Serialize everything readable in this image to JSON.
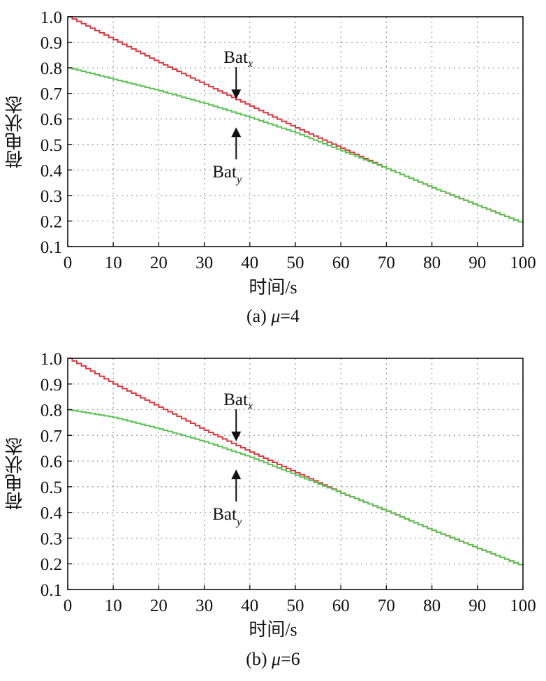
{
  "chart_data": [
    {
      "type": "line",
      "panel_caption": "(a)",
      "caption_symbol": "μ",
      "caption_value": "=4",
      "xlabel": "时间/s",
      "ylabel": "荷电状态",
      "xlim": [
        0,
        100
      ],
      "ylim": [
        0.1,
        1.0
      ],
      "xticks": [
        "0",
        "10",
        "20",
        "30",
        "40",
        "50",
        "60",
        "70",
        "80",
        "90",
        "100"
      ],
      "yticks": [
        "0.1",
        "0.2",
        "0.3",
        "0.4",
        "0.5",
        "0.6",
        "0.7",
        "0.8",
        "0.9",
        "1.0"
      ],
      "grid": true,
      "series": [
        {
          "name": "Bat_x",
          "color": "#d9363e",
          "x": [
            0,
            10,
            20,
            30,
            40,
            50,
            60,
            70,
            80,
            90,
            100
          ],
          "y": [
            1.0,
            0.91,
            0.82,
            0.735,
            0.65,
            0.565,
            0.485,
            0.405,
            0.33,
            0.26,
            0.19
          ]
        },
        {
          "name": "Bat_y",
          "color": "#5cc155",
          "x": [
            0,
            10,
            20,
            30,
            40,
            50,
            60,
            70,
            80,
            90,
            100
          ],
          "y": [
            0.8,
            0.755,
            0.71,
            0.66,
            0.605,
            0.545,
            0.475,
            0.405,
            0.33,
            0.26,
            0.19
          ]
        }
      ],
      "annotations": [
        {
          "base": "Bat",
          "sub": "x",
          "x": 37,
          "y": 0.655,
          "direction": "down"
        },
        {
          "base": "Bat",
          "sub": "y",
          "x": 37,
          "y": 0.6,
          "direction": "up"
        }
      ]
    },
    {
      "type": "line",
      "panel_caption": "(b)",
      "caption_symbol": "μ",
      "caption_value": "=6",
      "xlabel": "时间/s",
      "ylabel": "荷电状态",
      "xlim": [
        0,
        100
      ],
      "ylim": [
        0.1,
        1.0
      ],
      "xticks": [
        "0",
        "10",
        "20",
        "30",
        "40",
        "50",
        "60",
        "70",
        "80",
        "90",
        "100"
      ],
      "yticks": [
        "0.1",
        "0.2",
        "0.3",
        "0.4",
        "0.5",
        "0.6",
        "0.7",
        "0.8",
        "0.9",
        "1.0"
      ],
      "grid": true,
      "series": [
        {
          "name": "Bat_x",
          "color": "#d9363e",
          "x": [
            0,
            10,
            20,
            30,
            40,
            50,
            60,
            70,
            80,
            90,
            100
          ],
          "y": [
            1.0,
            0.9,
            0.81,
            0.72,
            0.635,
            0.555,
            0.475,
            0.405,
            0.33,
            0.26,
            0.19
          ]
        },
        {
          "name": "Bat_y",
          "color": "#5cc155",
          "x": [
            0,
            10,
            20,
            30,
            40,
            50,
            60,
            70,
            80,
            90,
            100
          ],
          "y": [
            0.8,
            0.77,
            0.725,
            0.675,
            0.615,
            0.545,
            0.475,
            0.405,
            0.33,
            0.26,
            0.19
          ]
        }
      ],
      "annotations": [
        {
          "base": "Bat",
          "sub": "x",
          "x": 37,
          "y": 0.655,
          "direction": "down"
        },
        {
          "base": "Bat",
          "sub": "y",
          "x": 37,
          "y": 0.6,
          "direction": "up"
        }
      ]
    }
  ]
}
